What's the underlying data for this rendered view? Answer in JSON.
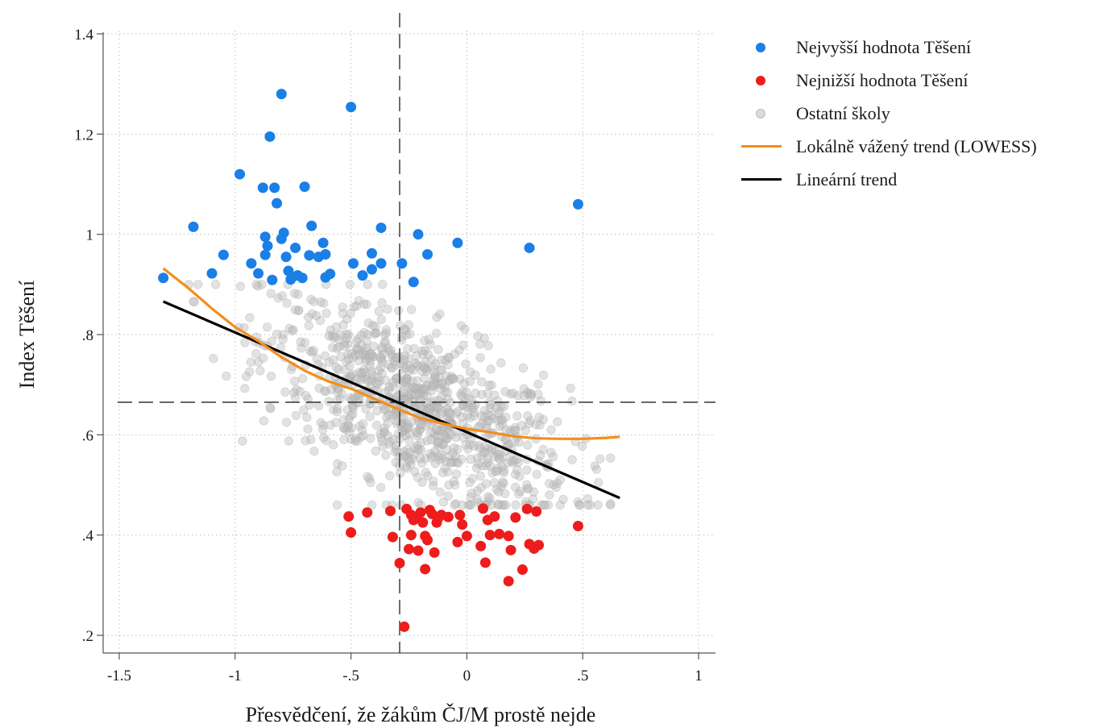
{
  "chart_data": {
    "type": "scatter",
    "title": "",
    "xlabel": "Přesvědčení, že žákům ČJ/M prostě nejde",
    "ylabel": "Index Těšení",
    "xlim": [
      -1.57,
      1.07
    ],
    "ylim": [
      0.18,
      1.43
    ],
    "x_ticks": [
      {
        "v": -1.5,
        "label": "-1.5"
      },
      {
        "v": -1,
        "label": "-1"
      },
      {
        "v": -0.5,
        "label": "-.5"
      },
      {
        "v": 0,
        "label": "0"
      },
      {
        "v": 0.5,
        "label": ".5"
      },
      {
        "v": 1,
        "label": "1"
      }
    ],
    "y_ticks": [
      {
        "v": 0.2,
        "label": ".2"
      },
      {
        "v": 0.4,
        "label": ".4"
      },
      {
        "v": 0.6,
        "label": ".6"
      },
      {
        "v": 0.8,
        "label": ".8"
      },
      {
        "v": 1.0,
        "label": "1"
      },
      {
        "v": 1.2,
        "label": "1.2"
      },
      {
        "v": 1.4,
        "label": "1.4"
      }
    ],
    "grid": true,
    "reference_lines": {
      "x": -0.29,
      "y": 0.665
    },
    "legend_position": "right",
    "colors": {
      "top": "#1a7fe6",
      "bottom": "#ee1c1c",
      "others": "#c8c8c8",
      "lowess": "#f28e1c",
      "linear": "#000000",
      "axis": "#555555",
      "grid": "#bdbdbd"
    },
    "series": [
      {
        "name": "Nejvyšší hodnota Těšení",
        "kind": "points",
        "color": "#1a7fe6",
        "points": [
          [
            -1.31,
            0.913
          ],
          [
            -1.18,
            1.015
          ],
          [
            -1.1,
            0.922
          ],
          [
            -1.05,
            0.959
          ],
          [
            -0.98,
            1.12
          ],
          [
            -0.93,
            0.942
          ],
          [
            -0.9,
            0.922
          ],
          [
            -0.88,
            1.093
          ],
          [
            -0.87,
            0.995
          ],
          [
            -0.87,
            0.959
          ],
          [
            -0.86,
            0.977
          ],
          [
            -0.85,
            1.195
          ],
          [
            -0.84,
            0.909
          ],
          [
            -0.83,
            1.093
          ],
          [
            -0.82,
            1.062
          ],
          [
            -0.8,
            1.28
          ],
          [
            -0.8,
            0.991
          ],
          [
            -0.79,
            1.003
          ],
          [
            -0.78,
            0.955
          ],
          [
            -0.77,
            0.927
          ],
          [
            -0.76,
            0.91
          ],
          [
            -0.74,
            0.973
          ],
          [
            -0.73,
            0.918
          ],
          [
            -0.71,
            0.913
          ],
          [
            -0.7,
            1.095
          ],
          [
            -0.68,
            0.958
          ],
          [
            -0.67,
            1.017
          ],
          [
            -0.64,
            0.955
          ],
          [
            -0.62,
            0.983
          ],
          [
            -0.61,
            0.96
          ],
          [
            -0.61,
            0.914
          ],
          [
            -0.59,
            0.921
          ],
          [
            -0.5,
            1.254
          ],
          [
            -0.49,
            0.942
          ],
          [
            -0.45,
            0.918
          ],
          [
            -0.41,
            0.962
          ],
          [
            -0.41,
            0.93
          ],
          [
            -0.37,
            1.013
          ],
          [
            -0.37,
            0.942
          ],
          [
            -0.28,
            0.942
          ],
          [
            -0.23,
            0.905
          ],
          [
            -0.21,
            1.0
          ],
          [
            -0.17,
            0.96
          ],
          [
            -0.04,
            0.983
          ],
          [
            0.27,
            0.973
          ],
          [
            0.48,
            1.06
          ]
        ]
      },
      {
        "name": "Nejnižší hodnota Těšení",
        "kind": "points",
        "color": "#ee1c1c",
        "points": [
          [
            -0.51,
            0.437
          ],
          [
            -0.5,
            0.405
          ],
          [
            -0.43,
            0.445
          ],
          [
            -0.33,
            0.448
          ],
          [
            -0.32,
            0.396
          ],
          [
            -0.29,
            0.344
          ],
          [
            -0.27,
            0.217
          ],
          [
            -0.26,
            0.452
          ],
          [
            -0.25,
            0.372
          ],
          [
            -0.24,
            0.44
          ],
          [
            -0.24,
            0.4
          ],
          [
            -0.23,
            0.43
          ],
          [
            -0.22,
            0.436
          ],
          [
            -0.21,
            0.369
          ],
          [
            -0.2,
            0.445
          ],
          [
            -0.19,
            0.425
          ],
          [
            -0.18,
            0.398
          ],
          [
            -0.18,
            0.332
          ],
          [
            -0.17,
            0.39
          ],
          [
            -0.16,
            0.45
          ],
          [
            -0.15,
            0.442
          ],
          [
            -0.14,
            0.365
          ],
          [
            -0.13,
            0.425
          ],
          [
            -0.12,
            0.436
          ],
          [
            -0.11,
            0.44
          ],
          [
            -0.08,
            0.436
          ],
          [
            -0.04,
            0.386
          ],
          [
            -0.03,
            0.44
          ],
          [
            -0.02,
            0.421
          ],
          [
            0.0,
            0.398
          ],
          [
            0.06,
            0.378
          ],
          [
            0.07,
            0.453
          ],
          [
            0.08,
            0.345
          ],
          [
            0.09,
            0.43
          ],
          [
            0.1,
            0.4
          ],
          [
            0.12,
            0.437
          ],
          [
            0.14,
            0.402
          ],
          [
            0.18,
            0.398
          ],
          [
            0.18,
            0.308
          ],
          [
            0.19,
            0.37
          ],
          [
            0.21,
            0.435
          ],
          [
            0.24,
            0.331
          ],
          [
            0.26,
            0.452
          ],
          [
            0.27,
            0.382
          ],
          [
            0.29,
            0.373
          ],
          [
            0.3,
            0.447
          ],
          [
            0.31,
            0.38
          ],
          [
            0.48,
            0.418
          ]
        ]
      },
      {
        "name": "Ostatní školy",
        "kind": "points",
        "color": "#c8c8c8",
        "generated_count": 950
      },
      {
        "name": "Lokálně vážený trend (LOWESS)",
        "kind": "line",
        "color": "#f28e1c",
        "points": [
          [
            -1.31,
            0.932
          ],
          [
            -1.2,
            0.892
          ],
          [
            -1.1,
            0.852
          ],
          [
            -1.0,
            0.815
          ],
          [
            -0.9,
            0.787
          ],
          [
            -0.8,
            0.755
          ],
          [
            -0.7,
            0.728
          ],
          [
            -0.6,
            0.707
          ],
          [
            -0.5,
            0.692
          ],
          [
            -0.4,
            0.672
          ],
          [
            -0.3,
            0.652
          ],
          [
            -0.2,
            0.633
          ],
          [
            -0.1,
            0.622
          ],
          [
            0.0,
            0.612
          ],
          [
            0.1,
            0.605
          ],
          [
            0.2,
            0.597
          ],
          [
            0.3,
            0.593
          ],
          [
            0.4,
            0.592
          ],
          [
            0.5,
            0.592
          ],
          [
            0.6,
            0.594
          ],
          [
            0.66,
            0.596
          ]
        ]
      },
      {
        "name": "Lineární trend",
        "kind": "line",
        "color": "#000000",
        "points": [
          [
            -1.31,
            0.866
          ],
          [
            0.66,
            0.474
          ]
        ]
      }
    ]
  }
}
